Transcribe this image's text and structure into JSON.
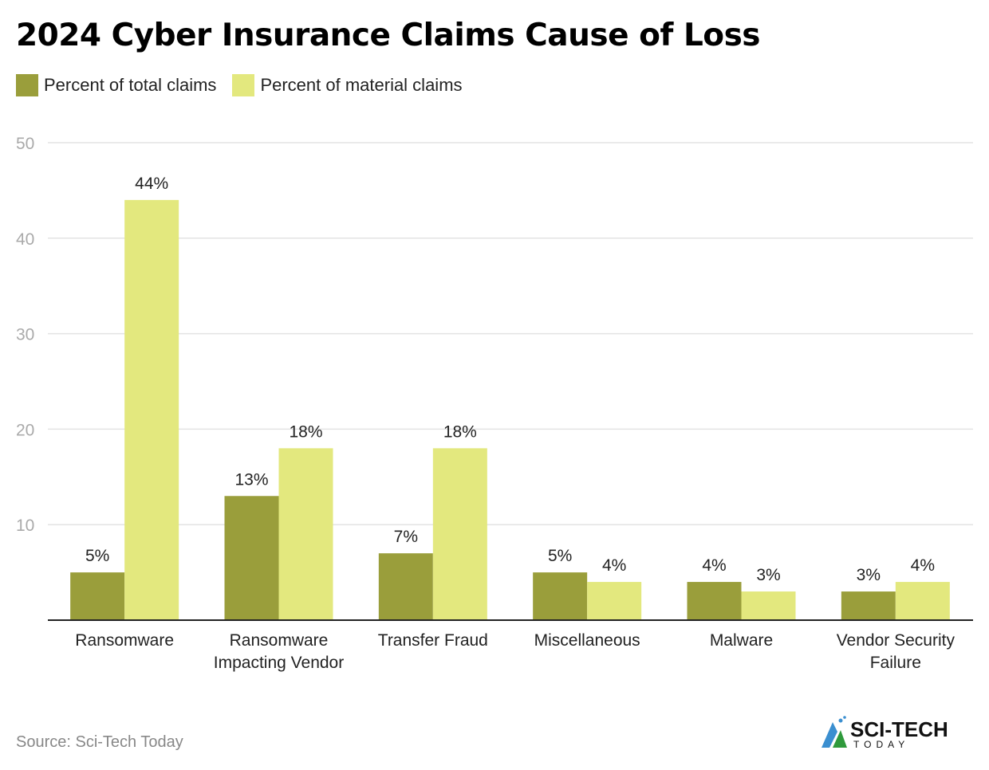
{
  "title": "2024 Cyber Insurance Claims Cause of Loss",
  "source": "Source: Sci-Tech Today",
  "logo": {
    "line1": "SCI-TECH",
    "line2": "TODAY"
  },
  "colors": {
    "total": "#9a9e3b",
    "material": "#e3e87e",
    "grid": "#e3e3e3",
    "axis": "#222222",
    "tick": "#aaaaaa"
  },
  "chart_data": {
    "type": "bar",
    "title": "2024 Cyber Insurance Claims Cause of Loss",
    "categories": [
      "Ransomware",
      "Ransomware Impacting Vendor",
      "Transfer Fraud",
      "Miscellaneous",
      "Malware",
      "Vendor Security Failure"
    ],
    "series": [
      {
        "name": "Percent of total claims",
        "values": [
          5,
          13,
          7,
          5,
          4,
          3
        ],
        "labels": [
          "5%",
          "13%",
          "7%",
          "5%",
          "4%",
          "3%"
        ]
      },
      {
        "name": "Percent of material claims",
        "values": [
          44,
          18,
          18,
          4,
          3,
          4
        ],
        "labels": [
          "44%",
          "18%",
          "18%",
          "4%",
          "3%",
          "4%"
        ]
      }
    ],
    "yticks": [
      "10",
      "20",
      "30",
      "40",
      "50"
    ],
    "ylim": [
      0,
      50
    ],
    "grid": true,
    "legend": "top-left",
    "xlabel": "",
    "ylabel": ""
  }
}
